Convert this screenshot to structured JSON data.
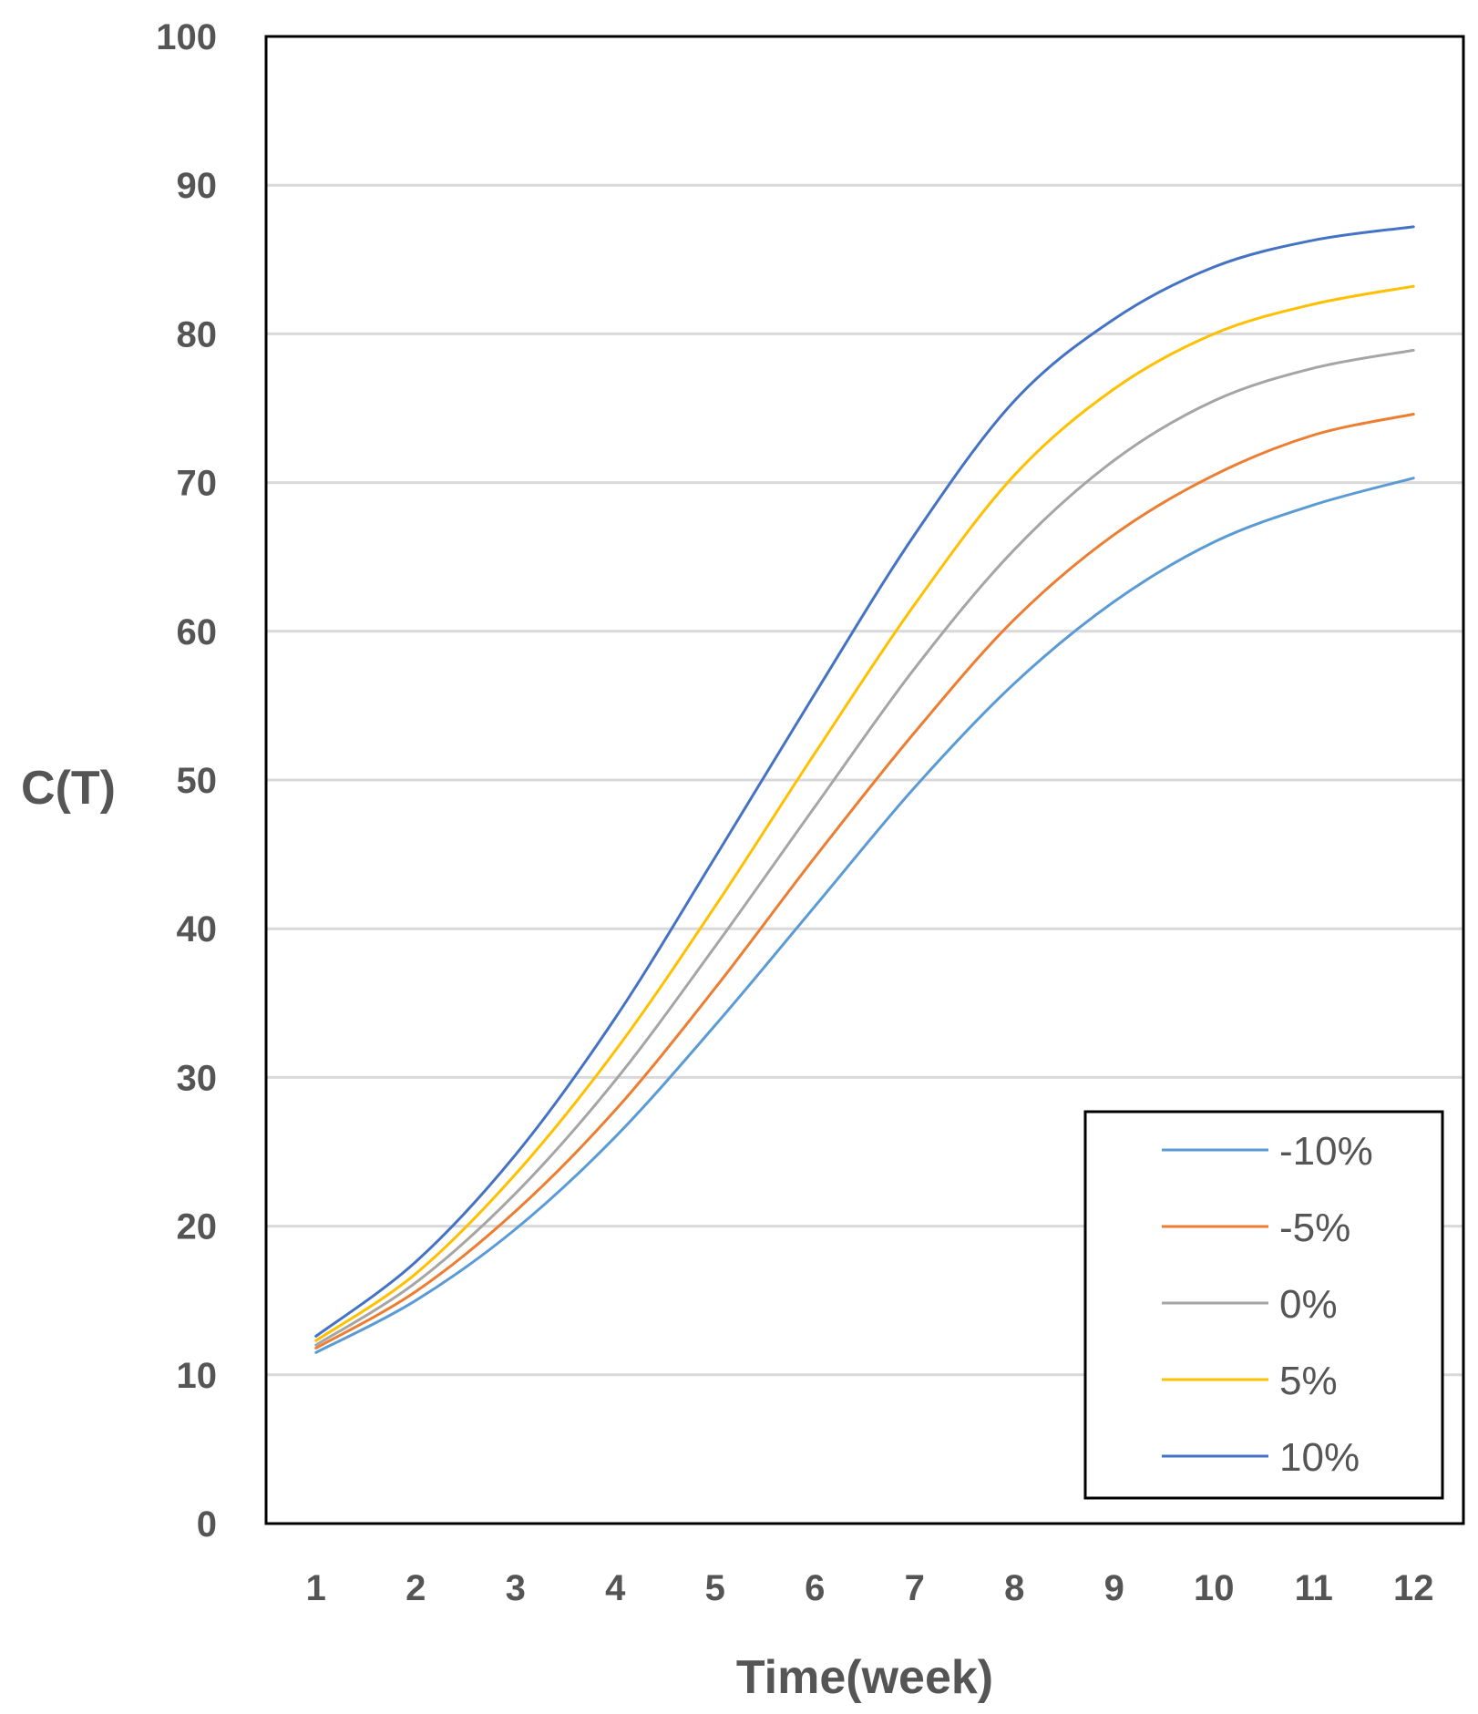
{
  "chart_data": {
    "type": "line",
    "title": "",
    "xlabel": "Time(week)",
    "ylabel": "C(T)",
    "x": [
      1,
      2,
      3,
      4,
      5,
      6,
      7,
      8,
      9,
      10,
      11,
      12
    ],
    "x_tick_labels": [
      "1",
      "2",
      "3",
      "4",
      "5",
      "6",
      "7",
      "8",
      "9",
      "10",
      "11",
      "12"
    ],
    "ylim": [
      0,
      100
    ],
    "y_ticks": [
      0,
      10,
      20,
      30,
      40,
      50,
      60,
      70,
      80,
      90,
      100
    ],
    "y_tick_labels": [
      "0",
      "10",
      "20",
      "30",
      "40",
      "50",
      "60",
      "70",
      "80",
      "90",
      "100"
    ],
    "grid": "horizontal",
    "legend_position": "bottom-right",
    "series": [
      {
        "name": "-10%",
        "color": "#5b9bd5",
        "values": [
          11.5,
          15.0,
          19.8,
          26.0,
          33.5,
          41.5,
          49.5,
          56.5,
          62.0,
          66.0,
          68.5,
          70.3
        ]
      },
      {
        "name": "-5%",
        "color": "#ed7d31",
        "values": [
          11.8,
          15.6,
          21.0,
          27.8,
          36.0,
          44.8,
          53.2,
          60.8,
          66.5,
          70.5,
          73.2,
          74.6
        ]
      },
      {
        "name": "0%",
        "color": "#a5a5a5",
        "values": [
          12.0,
          16.2,
          22.2,
          29.8,
          38.8,
          48.2,
          57.5,
          65.5,
          71.5,
          75.5,
          77.7,
          78.9
        ]
      },
      {
        "name": "5%",
        "color": "#ffc000",
        "values": [
          12.3,
          16.8,
          23.5,
          31.8,
          41.5,
          51.8,
          61.8,
          70.5,
          76.3,
          80.0,
          82.0,
          83.2
        ]
      },
      {
        "name": "10%",
        "color": "#4472c4",
        "values": [
          12.6,
          17.6,
          24.8,
          34.0,
          44.8,
          55.8,
          66.5,
          75.5,
          81.0,
          84.5,
          86.3,
          87.2
        ]
      }
    ]
  }
}
